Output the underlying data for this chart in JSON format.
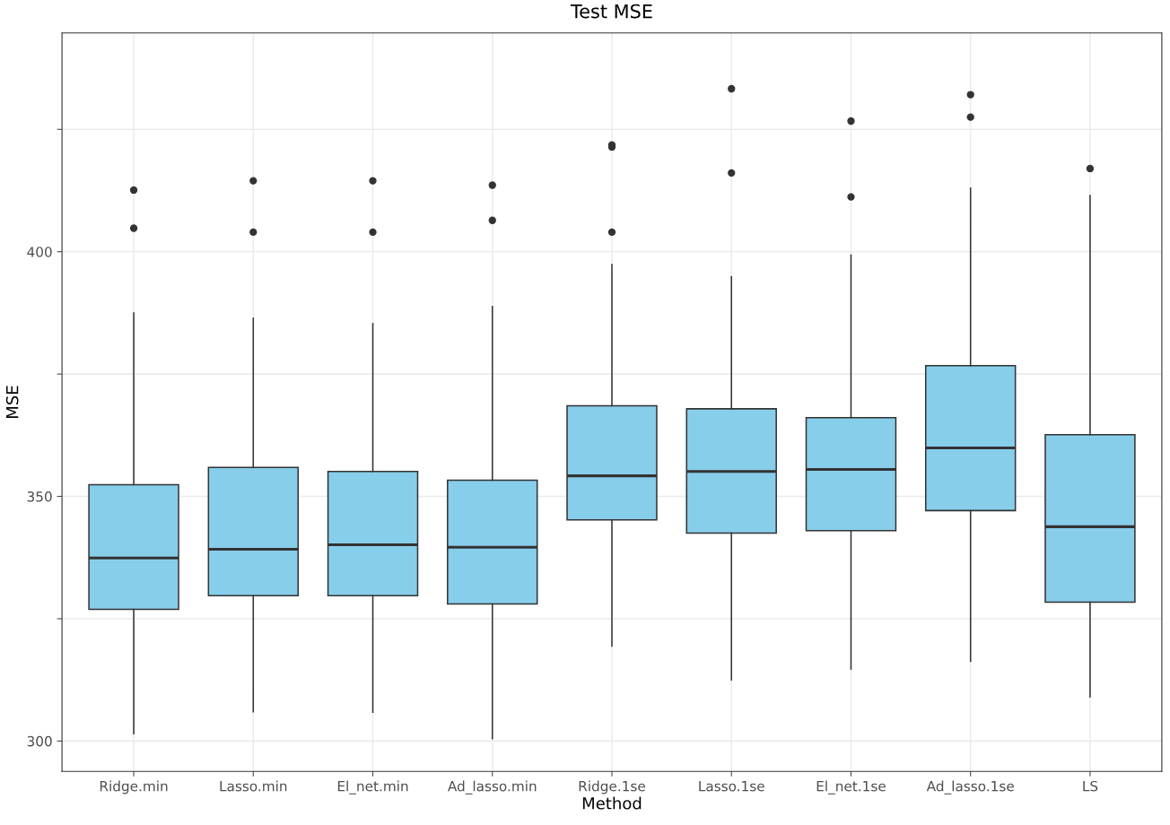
{
  "chart_data": {
    "type": "box",
    "title": "Test MSE",
    "xlabel": "Method",
    "ylabel": "MSE",
    "categories": [
      "Ridge.min",
      "Lasso.min",
      "El_net.min",
      "Ad_lasso.min",
      "Ridge.1se",
      "Lasso.1se",
      "El_net.1se",
      "Ad_lasso.1se",
      "LS"
    ],
    "color": "#87ceeb",
    "boxes": [
      {
        "low": 301.5,
        "q1": 326.9,
        "median": 337.4,
        "q3": 352.4,
        "high": 387.5,
        "outliers": [
          412.6,
          404.8
        ]
      },
      {
        "low": 306.0,
        "q1": 329.7,
        "median": 339.2,
        "q3": 355.9,
        "high": 386.4,
        "outliers": [
          414.5,
          404.0
        ]
      },
      {
        "low": 305.9,
        "q1": 329.7,
        "median": 340.1,
        "q3": 355.1,
        "high": 385.3,
        "outliers": [
          414.5,
          404.0
        ]
      },
      {
        "low": 300.5,
        "q1": 328.0,
        "median": 339.6,
        "q3": 353.3,
        "high": 388.8,
        "outliers": [
          413.6,
          406.4
        ]
      },
      {
        "low": 319.4,
        "q1": 345.2,
        "median": 354.2,
        "q3": 368.5,
        "high": 397.4,
        "outliers": [
          421.8,
          421.4,
          404.0
        ]
      },
      {
        "low": 312.5,
        "q1": 342.5,
        "median": 355.1,
        "q3": 367.9,
        "high": 394.9,
        "outliers": [
          433.3,
          416.1
        ]
      },
      {
        "low": 314.7,
        "q1": 343.0,
        "median": 355.5,
        "q3": 366.1,
        "high": 399.3,
        "outliers": [
          426.7,
          411.2
        ]
      },
      {
        "low": 316.3,
        "q1": 347.1,
        "median": 359.9,
        "q3": 376.7,
        "high": 413.0,
        "outliers": [
          432.1,
          427.5
        ]
      },
      {
        "low": 309.0,
        "q1": 328.4,
        "median": 343.8,
        "q3": 362.6,
        "high": 411.5,
        "outliers": [
          417.0
        ]
      }
    ],
    "ylim": [
      293.8,
      444.7
    ],
    "yticks": [
      300,
      {
        "value": 325,
        "label": null
      },
      350,
      {
        "value": 375,
        "label": null
      },
      400,
      {
        "value": 425,
        "label": null
      }
    ],
    "grid": true
  }
}
